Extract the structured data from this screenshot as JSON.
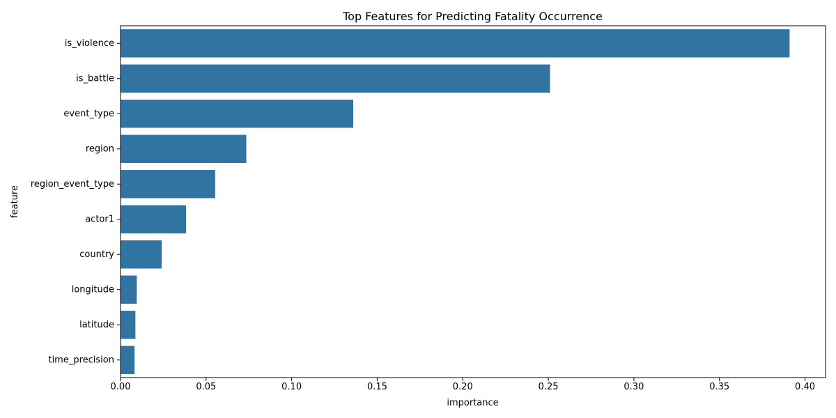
{
  "chart_data": {
    "type": "bar",
    "orientation": "horizontal",
    "title": "Top Features for Predicting Fatality Occurrence",
    "xlabel": "importance",
    "ylabel": "feature",
    "categories": [
      "is_violence",
      "is_battle",
      "event_type",
      "region",
      "region_event_type",
      "actor1",
      "country",
      "longitude",
      "latitude",
      "time_precision"
    ],
    "values": [
      0.391,
      0.251,
      0.136,
      0.0735,
      0.0553,
      0.0383,
      0.0241,
      0.0095,
      0.0087,
      0.0082
    ],
    "xlim": [
      0,
      0.412
    ],
    "xticks": [
      0.0,
      0.05,
      0.1,
      0.15,
      0.2,
      0.25,
      0.3,
      0.35,
      0.4
    ],
    "xtick_labels": [
      "0.00",
      "0.05",
      "0.10",
      "0.15",
      "0.20",
      "0.25",
      "0.30",
      "0.35",
      "0.40"
    ],
    "bar_color": "#3274a1",
    "grid": false,
    "legend": "none"
  }
}
